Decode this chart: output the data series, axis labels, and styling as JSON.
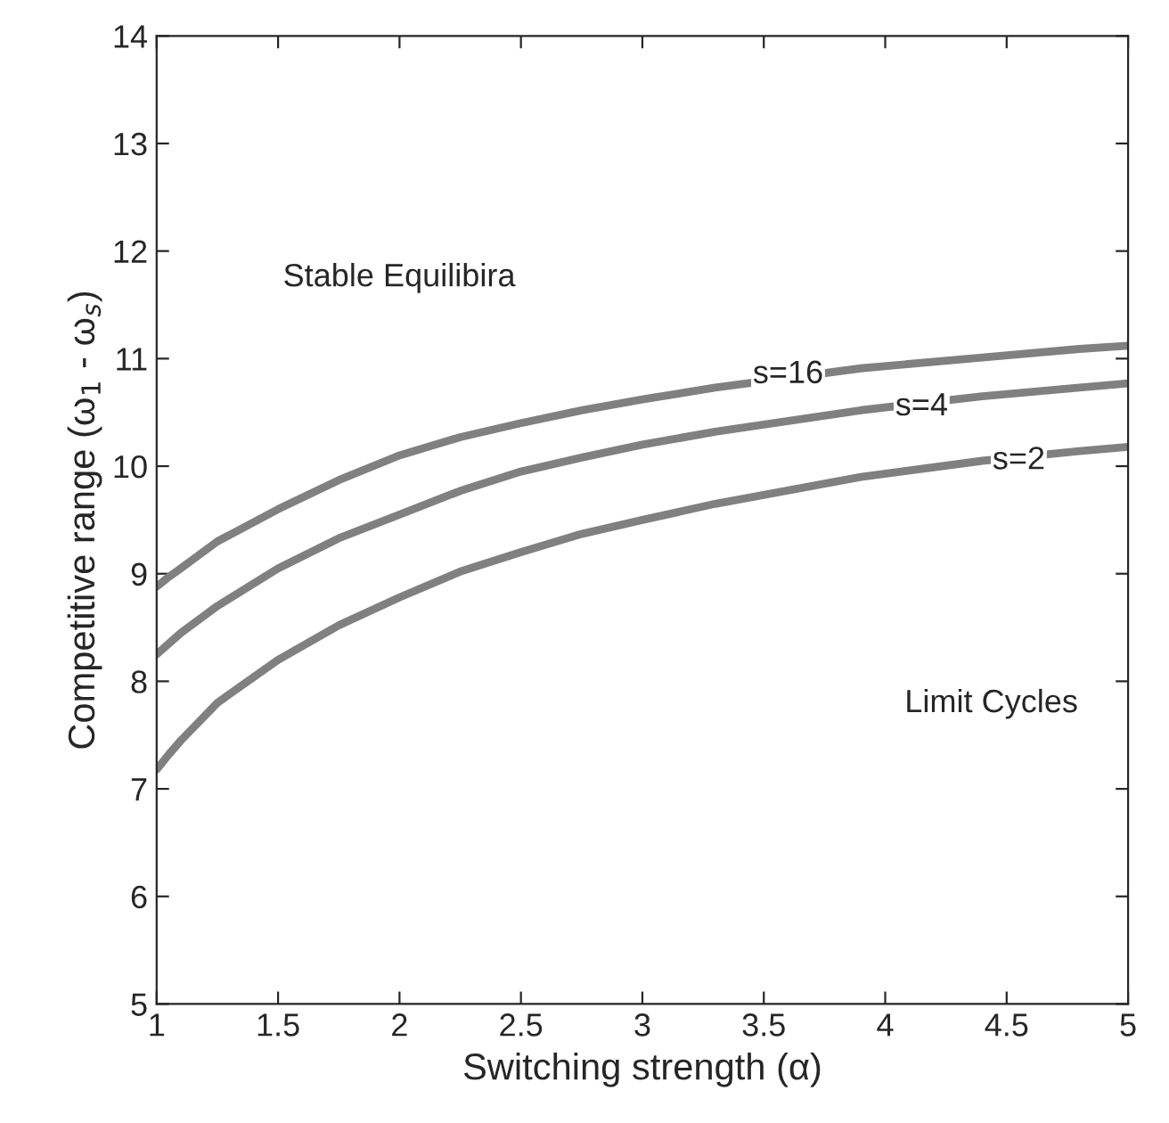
{
  "chart_data": {
    "type": "line",
    "xlabel": "Switching strength (α)",
    "ylabel": "Competitive range (ω$_{1}$ - ω$_{s}$)",
    "x": [
      1,
      1.05,
      1.1,
      1.25,
      1.5,
      1.75,
      2,
      2.25,
      2.5,
      2.75,
      3,
      3.3,
      3.9,
      4.4,
      4.8,
      5
    ],
    "series": [
      {
        "color": "#808080",
        "values": [
          8.88,
          8.97,
          9.05,
          9.3,
          9.6,
          9.87,
          10.1,
          10.27,
          10.4,
          10.52,
          10.62,
          10.73,
          10.91,
          11.01,
          11.09,
          11.12
        ]
      },
      {
        "color": "#808080",
        "values": [
          8.25,
          8.35,
          8.45,
          8.7,
          9.05,
          9.33,
          9.55,
          9.77,
          9.95,
          10.08,
          10.2,
          10.32,
          10.52,
          10.65,
          10.73,
          10.77
        ]
      },
      {
        "color": "#808080",
        "values": [
          7.18,
          7.32,
          7.45,
          7.8,
          8.2,
          8.52,
          8.78,
          9.02,
          9.2,
          9.37,
          9.5,
          9.65,
          9.9,
          10.05,
          10.14,
          10.18
        ]
      }
    ],
    "xlim": [
      1,
      5
    ],
    "ylim": [
      5,
      14
    ],
    "xticks": [
      1,
      1.5,
      2,
      2.5,
      3,
      3.5,
      4,
      4.5,
      5
    ],
    "yticks": [
      5,
      6,
      7,
      8,
      9,
      10,
      11,
      12,
      13,
      14
    ],
    "grid": false,
    "legend": false,
    "marker": "none",
    "line_style": "solid",
    "annotations": [
      {
        "text": "s=16",
        "x": 3.6,
        "y": 10.85
      },
      {
        "text": "s=4",
        "x": 4.15,
        "y": 10.55
      },
      {
        "text": "s=2",
        "x": 4.55,
        "y": 10.05
      },
      "Stable Equilibira",
      "Limit Cycles"
    ]
  }
}
